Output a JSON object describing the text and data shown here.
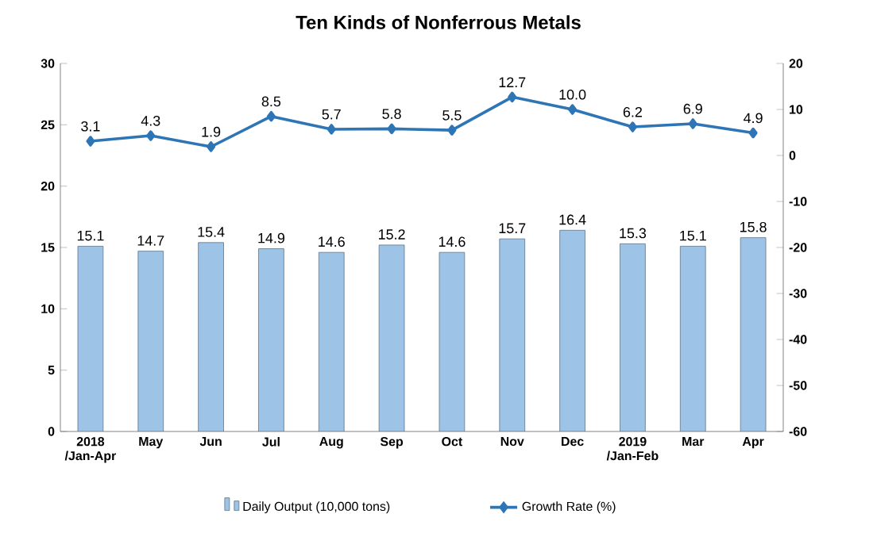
{
  "chart_data": {
    "type": "bar",
    "title": "Ten Kinds of Nonferrous Metals",
    "categories": [
      "2018 /Jan-Apr",
      "May",
      "Jun",
      "Jul",
      "Aug",
      "Sep",
      "Oct",
      "Nov",
      "Dec",
      "2019 /Jan-Feb",
      "Mar",
      "Apr"
    ],
    "series": [
      {
        "name": "Daily Output (10,000 tons)",
        "color": "#9dc3e6",
        "values": [
          15.1,
          14.7,
          15.4,
          14.9,
          14.6,
          15.2,
          14.6,
          15.7,
          16.4,
          15.3,
          15.1,
          15.8
        ]
      },
      {
        "name": "Growth Rate (%)",
        "type": "line",
        "axis": "y2",
        "color": "#2e75b6",
        "marker": "diamond",
        "value_labels": [
          "3.1",
          "4.3",
          "1.9",
          "8.5",
          "5.7",
          "5.8",
          "5.5",
          "12.7",
          "10.0",
          "6.2",
          "6.9",
          "4.9"
        ],
        "values": [
          3.1,
          4.3,
          1.9,
          8.5,
          5.7,
          5.8,
          5.5,
          12.7,
          10.0,
          6.2,
          6.9,
          4.9
        ]
      }
    ],
    "ylim": [
      0,
      30
    ],
    "yticks": [
      0,
      5,
      10,
      15,
      20,
      25,
      30
    ],
    "y2lim": [
      -60,
      20
    ],
    "y2ticks": [
      -60,
      -50,
      -40,
      -30,
      -20,
      -10,
      0,
      10,
      20
    ],
    "data_labels": true,
    "legend": "bottom",
    "grid": false
  }
}
